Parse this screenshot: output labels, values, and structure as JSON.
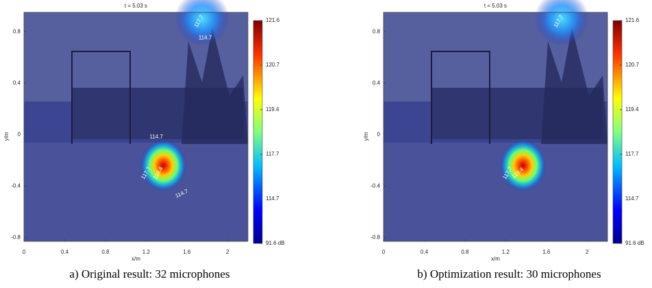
{
  "chart_data": [
    {
      "type": "heatmap",
      "title": "t = 5.03 s",
      "x_label": "x/m",
      "y_label": "y/m",
      "xlim": [
        0,
        2.2
      ],
      "xticks": [
        0,
        0.4,
        0.8,
        1.2,
        1.6,
        2
      ],
      "ylim": [
        -0.83,
        0.95
      ],
      "yticks": [
        -0.8,
        -0.4,
        0,
        0.4,
        0.8
      ],
      "colorbar_ticks": [
        {
          "value": 91.6,
          "label": "91.6 dB"
        },
        114.7,
        117.7,
        119.4,
        120.7,
        121.6
      ],
      "annotations": [
        "117.7",
        "114.7",
        "114.7",
        "117.7",
        "119.4",
        "114.7"
      ],
      "caption": "a) Original result: 32 microphones"
    },
    {
      "type": "heatmap",
      "title": "t = 5.03 s",
      "x_label": "x/m",
      "y_label": "y/m",
      "xlim": [
        0,
        2.2
      ],
      "xticks": [
        0,
        0.4,
        0.8,
        1.2,
        1.6,
        2
      ],
      "ylim": [
        -0.83,
        0.95
      ],
      "yticks": [
        -0.8,
        -0.4,
        0,
        0.4,
        0.8
      ],
      "colorbar_ticks": [
        {
          "value": 91.6,
          "label": "91.6 dB"
        },
        114.7,
        117.7,
        119.4,
        120.7,
        121.6
      ],
      "annotations": [
        "117.7",
        "117.7",
        "119.4"
      ],
      "caption": "b) Optimization result: 30 microphones"
    }
  ]
}
